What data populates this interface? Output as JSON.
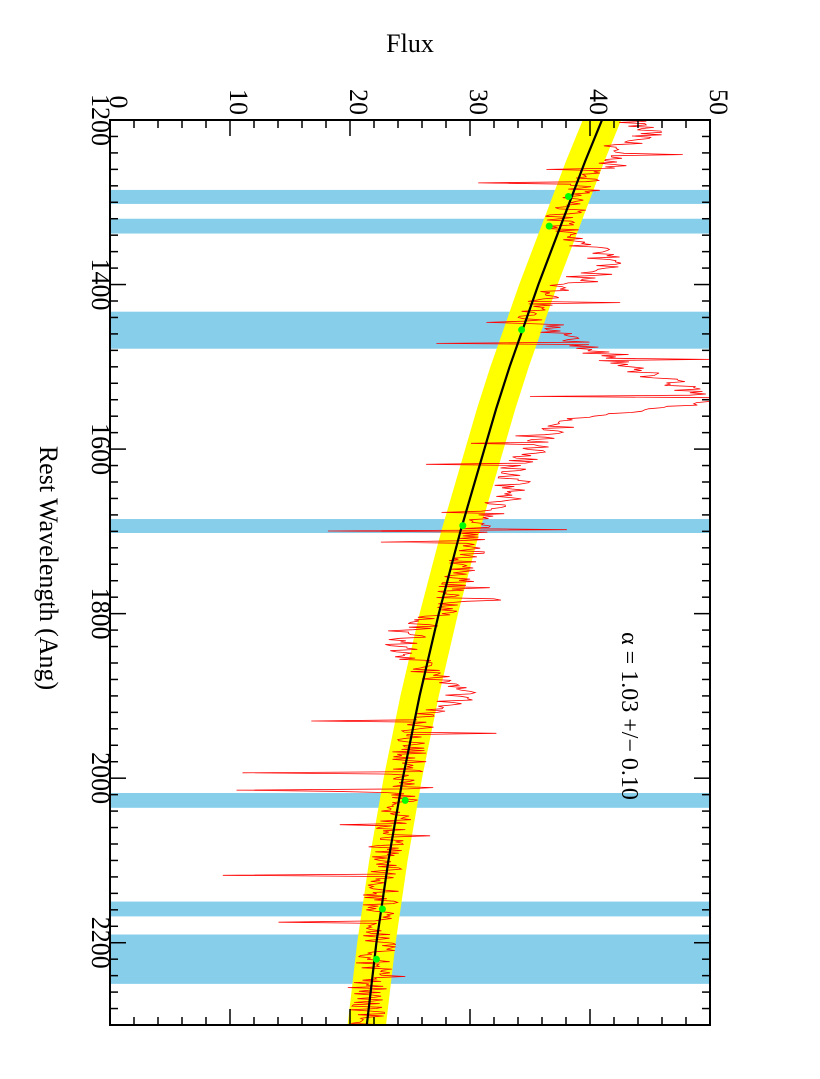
{
  "chart_data": {
    "type": "line",
    "orientation": "rotated-90-clockwise",
    "xlabel": "Rest Wavelength (Ang)",
    "ylabel": "Flux",
    "xlim": [
      1200,
      2300
    ],
    "ylim": [
      0,
      50
    ],
    "x_ticks": [
      1200,
      1400,
      1600,
      1800,
      2000,
      2200
    ],
    "y_ticks": [
      0,
      10,
      20,
      30,
      40,
      50
    ],
    "annotation": "α = 1.03 +/− 0.10",
    "colors": {
      "spectrum": "#ff0000",
      "fit": "#000000",
      "fit_band": "#ffff00",
      "windows": "#87ceeb",
      "fit_points": "#00ff00"
    },
    "continuum_windows": [
      [
        1285,
        1302
      ],
      [
        1320,
        1338
      ],
      [
        1433,
        1478
      ],
      [
        1685,
        1702
      ],
      [
        2018,
        2036
      ],
      [
        2150,
        2168
      ],
      [
        2190,
        2250
      ]
    ],
    "power_law_fit": {
      "x": [
        1200,
        1250,
        1300,
        1350,
        1400,
        1450,
        1500,
        1550,
        1600,
        1650,
        1700,
        1750,
        1800,
        1850,
        1900,
        1950,
        2000,
        2050,
        2100,
        2150,
        2200,
        2250,
        2300
      ],
      "y": [
        41.0,
        39.6,
        38.3,
        37.0,
        35.7,
        34.5,
        33.3,
        32.2,
        31.2,
        30.2,
        29.2,
        28.3,
        27.4,
        26.6,
        25.8,
        25.1,
        24.4,
        23.8,
        23.2,
        22.7,
        22.2,
        21.8,
        21.4
      ],
      "band_width": 1.6
    },
    "fit_points": {
      "x": [
        1293,
        1329,
        1455,
        1693,
        2027,
        2159,
        2220
      ],
      "y": [
        38.2,
        36.6,
        34.3,
        29.4,
        24.6,
        22.7,
        22.2
      ]
    },
    "spectrum": {
      "x": [
        1200,
        1215,
        1225,
        1240,
        1260,
        1280,
        1300,
        1320,
        1340,
        1360,
        1380,
        1395,
        1400,
        1420,
        1440,
        1460,
        1480,
        1500,
        1520,
        1540,
        1550,
        1560,
        1580,
        1600,
        1620,
        1640,
        1660,
        1680,
        1700,
        1720,
        1740,
        1760,
        1780,
        1800,
        1820,
        1840,
        1860,
        1880,
        1890,
        1900,
        1910,
        1920,
        1940,
        1960,
        1980,
        2000,
        2020,
        2040,
        2060,
        2080,
        2100,
        2120,
        2140,
        2160,
        2180,
        2200,
        2220,
        2240,
        2260,
        2280,
        2300
      ],
      "y": [
        43.0,
        45.0,
        43.5,
        41.5,
        40.5,
        39.5,
        39.0,
        37.5,
        38.0,
        40.5,
        42.0,
        40.5,
        38.0,
        35.5,
        35.5,
        37.5,
        40.0,
        43.0,
        47.0,
        50.0,
        47.0,
        40.0,
        36.5,
        35.0,
        34.0,
        33.5,
        33.0,
        31.5,
        30.5,
        30.0,
        29.5,
        29.0,
        28.5,
        27.5,
        25.5,
        24.0,
        25.5,
        27.5,
        28.5,
        29.5,
        28.0,
        26.5,
        25.5,
        25.0,
        25.0,
        24.5,
        24.5,
        24.0,
        23.5,
        23.0,
        23.0,
        23.0,
        22.5,
        22.5,
        22.5,
        22.5,
        22.0,
        22.0,
        21.5,
        21.5,
        21.5
      ]
    }
  }
}
